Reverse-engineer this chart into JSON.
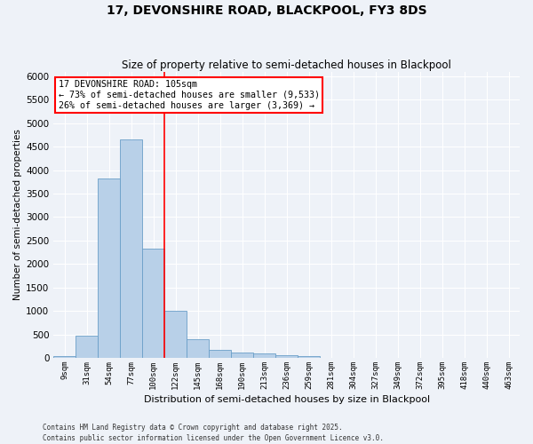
{
  "title_line1": "17, DEVONSHIRE ROAD, BLACKPOOL, FY3 8DS",
  "title_line2": "Size of property relative to semi-detached houses in Blackpool",
  "xlabel": "Distribution of semi-detached houses by size in Blackpool",
  "ylabel": "Number of semi-detached properties",
  "bar_color": "#b8d0e8",
  "bar_edge_color": "#6a9fc8",
  "vline_color": "red",
  "categories": [
    "9sqm",
    "31sqm",
    "54sqm",
    "77sqm",
    "100sqm",
    "122sqm",
    "145sqm",
    "168sqm",
    "190sqm",
    "213sqm",
    "236sqm",
    "259sqm",
    "281sqm",
    "304sqm",
    "327sqm",
    "349sqm",
    "372sqm",
    "395sqm",
    "418sqm",
    "440sqm",
    "463sqm"
  ],
  "values": [
    30,
    480,
    3820,
    4650,
    2320,
    1010,
    400,
    175,
    110,
    90,
    50,
    30,
    5,
    0,
    0,
    0,
    0,
    0,
    0,
    0,
    0
  ],
  "ylim": [
    0,
    6100
  ],
  "yticks": [
    0,
    500,
    1000,
    1500,
    2000,
    2500,
    3000,
    3500,
    4000,
    4500,
    5000,
    5500,
    6000
  ],
  "annotation_text": "17 DEVONSHIRE ROAD: 105sqm\n← 73% of semi-detached houses are smaller (9,533)\n26% of semi-detached houses are larger (3,369) →",
  "annotation_box_color": "white",
  "annotation_box_edge_color": "red",
  "footer_text": "Contains HM Land Registry data © Crown copyright and database right 2025.\nContains public sector information licensed under the Open Government Licence v3.0.",
  "bg_color": "#eef2f8",
  "plot_bg_color": "#eef2f8",
  "grid_color": "white",
  "property_vline_index": 4
}
